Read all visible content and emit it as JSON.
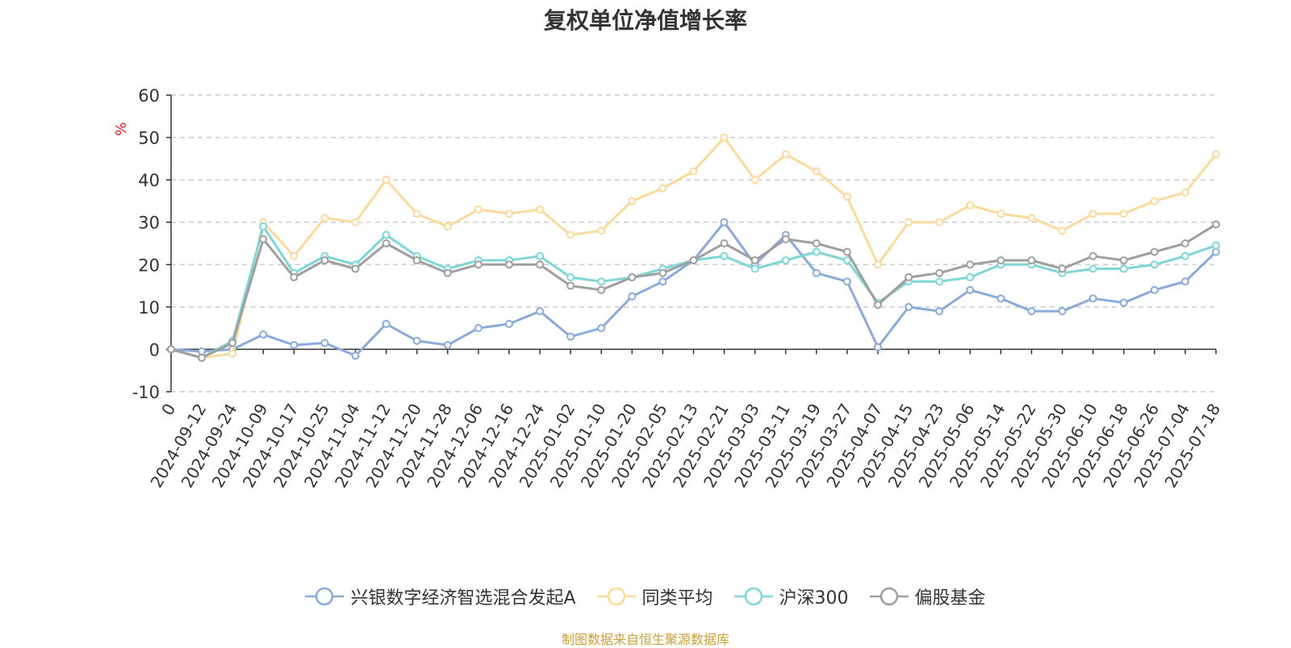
{
  "chart_data": {
    "type": "line",
    "title": "复权单位净值增长率",
    "ylabel": "%",
    "ylim": [
      -10,
      60
    ],
    "yticks": [
      -10,
      0,
      10,
      20,
      30,
      40,
      50,
      60
    ],
    "grid": true,
    "legend_position": "bottom",
    "x": [
      "0",
      "2024-09-12",
      "2024-09-24",
      "2024-10-09",
      "2024-10-17",
      "2024-10-25",
      "2024-11-04",
      "2024-11-12",
      "2024-11-20",
      "2024-11-28",
      "2024-12-06",
      "2024-12-16",
      "2024-12-24",
      "2025-01-02",
      "2025-01-10",
      "2025-01-20",
      "2025-02-05",
      "2025-02-13",
      "2025-02-21",
      "2025-03-03",
      "2025-03-11",
      "2025-03-19",
      "2025-03-27",
      "2025-04-07",
      "2025-04-15",
      "2025-04-23",
      "2025-05-06",
      "2025-05-14",
      "2025-05-22",
      "2025-05-30",
      "2025-06-10",
      "2025-06-18",
      "2025-06-26",
      "2025-07-04",
      "2025-07-18"
    ],
    "series": [
      {
        "name": "兴银数字经济智选混合发起A",
        "color": "#8aaadb",
        "values": [
          0,
          -0.5,
          0,
          3.5,
          1,
          1.5,
          -1.5,
          6,
          2,
          1,
          5,
          6,
          9,
          3,
          5,
          12.5,
          16,
          21,
          30,
          20,
          27,
          18,
          16,
          0.5,
          10,
          9,
          14,
          12,
          9,
          9,
          12,
          11,
          14,
          16,
          23
        ]
      },
      {
        "name": "同类平均",
        "color": "#fcd99c",
        "values": [
          0,
          -2,
          -1,
          30,
          22,
          31,
          30,
          40,
          32,
          29,
          33,
          32,
          33,
          27,
          28,
          35,
          38,
          42,
          50,
          40,
          46,
          42,
          36,
          20,
          30,
          30,
          34,
          32,
          31,
          28,
          32,
          32,
          35,
          37,
          46
        ]
      },
      {
        "name": "沪深300",
        "color": "#7fd6d6",
        "values": [
          0,
          -2,
          2,
          29,
          18,
          22,
          20,
          27,
          22,
          19,
          21,
          21,
          22,
          17,
          16,
          17,
          19,
          21,
          22,
          19,
          21,
          23,
          21,
          11,
          16,
          16,
          17,
          20,
          20,
          18,
          19,
          19,
          20,
          22,
          24.5
        ]
      },
      {
        "name": "偏股基金",
        "color": "#9f9f9f",
        "values": [
          0,
          -2,
          1.5,
          26,
          17,
          21,
          19,
          25,
          21,
          18,
          20,
          20,
          20,
          15,
          14,
          17,
          18,
          21,
          25,
          21,
          26,
          25,
          23,
          10.5,
          17,
          18,
          20,
          21,
          21,
          19,
          22,
          21,
          23,
          25,
          29.5
        ]
      }
    ]
  },
  "source_note": "制图数据来自恒生聚源数据库",
  "source_color": "#c8a03a",
  "ylabel_color": "#e02020"
}
